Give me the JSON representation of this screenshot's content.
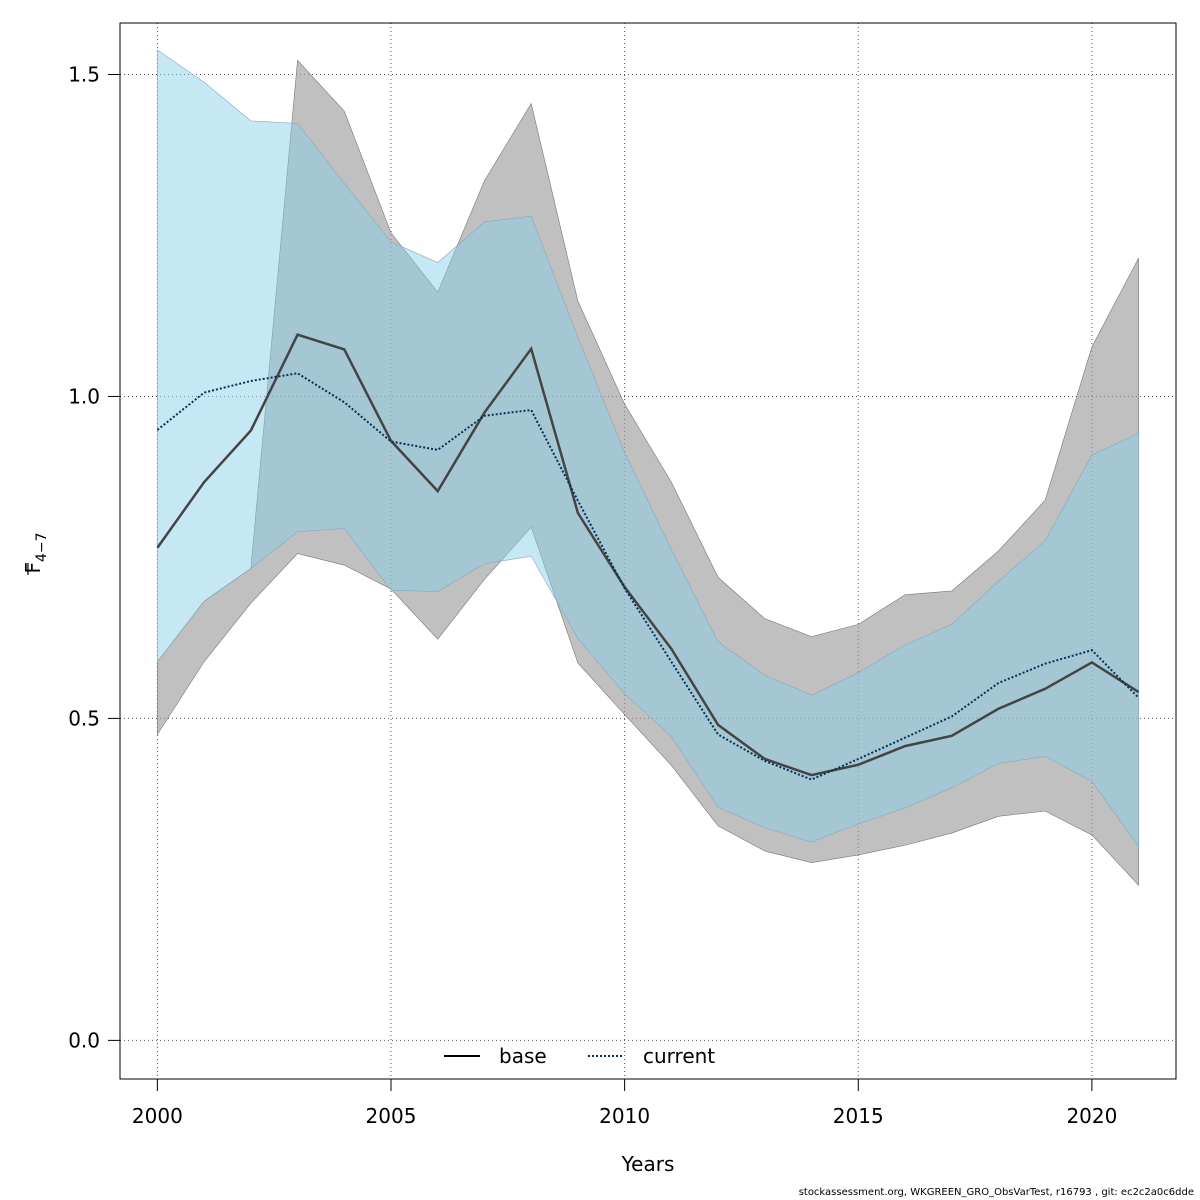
{
  "chart_data": {
    "type": "area",
    "x": [
      2000,
      2001,
      2002,
      2003,
      2004,
      2005,
      2006,
      2007,
      2008,
      2009,
      2010,
      2011,
      2012,
      2013,
      2014,
      2015,
      2016,
      2017,
      2018,
      2019,
      2020,
      2021
    ],
    "xlabel": "Years",
    "ylabel_main": "F",
    "ylabel_sub": "4−7",
    "xlim": [
      1999.2,
      2021.8
    ],
    "ylim": [
      -0.06,
      1.58
    ],
    "x_ticks": [
      2000,
      2005,
      2010,
      2015,
      2020
    ],
    "x_tick_labels": [
      "2000",
      "2005",
      "2010",
      "2015",
      "2020"
    ],
    "y_ticks": [
      0.0,
      0.5,
      1.0,
      1.5
    ],
    "y_tick_labels": [
      "0.0",
      "0.5",
      "1.0",
      "1.5"
    ],
    "grid": true,
    "legend_position": "bottom-center",
    "series": [
      {
        "name": "base",
        "line_style": "solid",
        "line_color": "#444444",
        "band_color": "#999999",
        "values": [
          0.765,
          0.867,
          0.947,
          1.096,
          1.073,
          0.931,
          0.853,
          0.975,
          1.074,
          0.819,
          0.704,
          0.608,
          0.49,
          0.437,
          0.412,
          0.428,
          0.457,
          0.473,
          0.515,
          0.546,
          0.587,
          0.541
        ],
        "lower": [
          0.475,
          0.588,
          0.679,
          0.756,
          0.738,
          0.701,
          0.623,
          0.716,
          0.797,
          0.586,
          0.506,
          0.427,
          0.333,
          0.294,
          0.276,
          0.288,
          0.303,
          0.322,
          0.348,
          0.356,
          0.319,
          0.241
        ],
        "upper": [
          0.588,
          0.682,
          0.733,
          1.522,
          1.443,
          1.254,
          1.162,
          1.335,
          1.455,
          1.148,
          0.988,
          0.867,
          0.719,
          0.655,
          0.627,
          0.646,
          0.692,
          0.698,
          0.76,
          0.839,
          1.077,
          1.215
        ]
      },
      {
        "name": "current",
        "line_style": "dotted",
        "line_color": "#003355",
        "band_color": "#87CEEB",
        "values": [
          0.948,
          1.006,
          1.024,
          1.036,
          0.991,
          0.93,
          0.917,
          0.97,
          0.979,
          0.838,
          0.702,
          0.588,
          0.475,
          0.434,
          0.405,
          0.437,
          0.47,
          0.503,
          0.555,
          0.585,
          0.606,
          0.532
        ],
        "lower": [
          0.588,
          0.682,
          0.733,
          0.79,
          0.795,
          0.699,
          0.697,
          0.74,
          0.752,
          0.624,
          0.538,
          0.472,
          0.362,
          0.33,
          0.308,
          0.336,
          0.361,
          0.392,
          0.43,
          0.441,
          0.402,
          0.301
        ],
        "upper": [
          1.538,
          1.488,
          1.428,
          1.424,
          1.331,
          1.24,
          1.208,
          1.271,
          1.28,
          1.092,
          0.913,
          0.762,
          0.619,
          0.567,
          0.536,
          0.571,
          0.614,
          0.646,
          0.713,
          0.776,
          0.909,
          0.943
        ]
      }
    ]
  },
  "footer": "stockassessment.org, WKGREEN_GRO_ObsVarTest, r16793 , git: ec2c2a0c6dde"
}
